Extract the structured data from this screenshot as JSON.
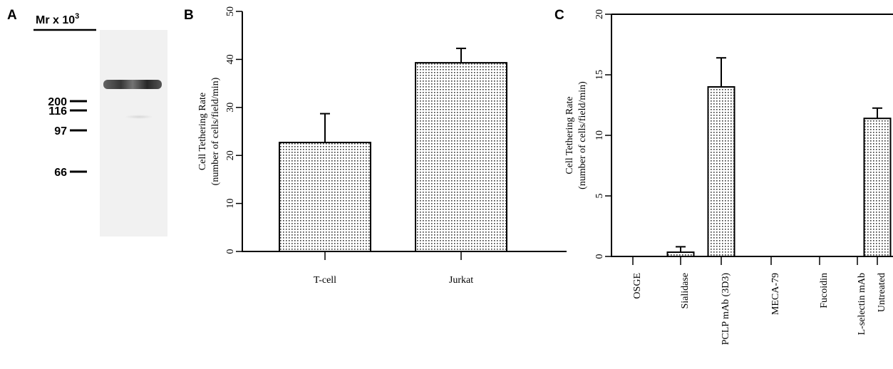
{
  "blot": {
    "panel_label": "A",
    "title": "Mr x 10",
    "title_sup": "3",
    "markers": [
      "200",
      "116",
      "97",
      "66"
    ]
  },
  "chart_data": [
    {
      "type": "bar",
      "panel_label": "B",
      "ylabel": [
        "Cell Tethering Rate",
        "(number of cells/field/min)"
      ],
      "categories": [
        "T-cell",
        "Jurkat"
      ],
      "series": [
        {
          "values": [
            22.7,
            39.3
          ],
          "errors": [
            6.0,
            3.0
          ]
        }
      ],
      "ylim": [
        0,
        50
      ],
      "yticks": [
        0,
        10,
        20,
        30,
        40,
        50
      ],
      "rotate_categories": false
    },
    {
      "type": "bar",
      "panel_label": "C",
      "ylabel": [
        "Cell Tethering Rate",
        "(number of cells/field/min)"
      ],
      "categories": [
        "OSGE",
        "Sialidase",
        "PCLP mAb (3D3)",
        "MECA-79",
        "Fucoidin",
        "L-selectin mAb",
        "Untreated"
      ],
      "series": [
        {
          "values": [
            0,
            0.35,
            14.0,
            0,
            0,
            0,
            11.4
          ],
          "errors": [
            0,
            0.45,
            2.4,
            0,
            0,
            0,
            0.85
          ]
        }
      ],
      "ylim": [
        0,
        20
      ],
      "yticks": [
        0,
        5,
        10,
        15,
        20
      ],
      "rotate_categories": true
    }
  ]
}
